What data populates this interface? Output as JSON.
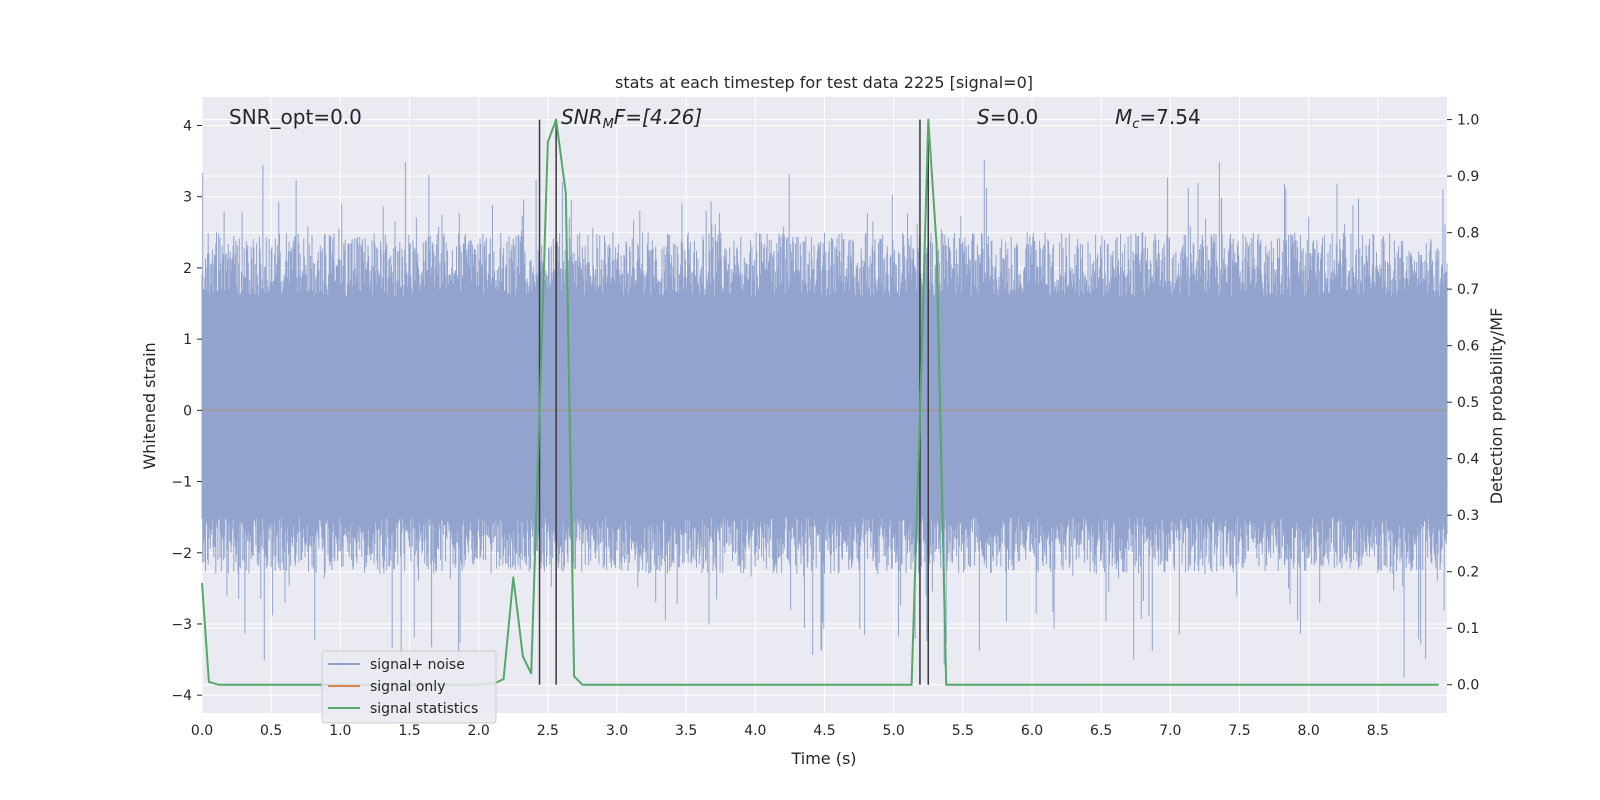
{
  "chart_data": {
    "type": "line",
    "title": "stats at each timestep for test data 2225 [signal=0]",
    "xlabel": "Time (s)",
    "ylabel_left": "Whitened strain",
    "ylabel_right": "Detection probability/MF",
    "xlim": [
      0.0,
      9.0
    ],
    "ylim_left": [
      -4.25,
      4.4
    ],
    "ylim_right": [
      -0.05,
      1.04
    ],
    "x_ticks": [
      "0.0",
      "0.5",
      "1.0",
      "1.5",
      "2.0",
      "2.5",
      "3.0",
      "3.5",
      "4.0",
      "4.5",
      "5.0",
      "5.5",
      "6.0",
      "6.5",
      "7.0",
      "7.5",
      "8.0",
      "8.5"
    ],
    "y_ticks_left": [
      "4",
      "3",
      "2",
      "1",
      "0",
      "−1",
      "−2",
      "−3",
      "−4"
    ],
    "y_ticks_right": [
      "1.0",
      "0.9",
      "0.8",
      "0.7",
      "0.6",
      "0.5",
      "0.4",
      "0.3",
      "0.2",
      "0.1",
      "0.0"
    ],
    "grid": true,
    "legend_position": "lower-left",
    "annotations": {
      "snr_opt": "SNR_opt=0.0",
      "snr_mf_main": "SNR",
      "snr_mf_sub": "M",
      "snr_mf_rest": "F=[4.26]",
      "s_var": "S",
      "s_rest": "=0.0",
      "mc_var": "M",
      "mc_sub": "c",
      "mc_rest": "=7.54"
    },
    "series": [
      {
        "name": "signal+ noise",
        "color": "#8da0cb",
        "axis": "left",
        "description_range": [
          -3.85,
          3.6
        ]
      },
      {
        "name": "signal only",
        "color": "#dd8452",
        "axis": "left",
        "x": [
          0.0,
          9.0
        ],
        "values": [
          0.0,
          0.0
        ]
      },
      {
        "name": "signal statistics",
        "color": "#55a868",
        "axis": "right",
        "x": [
          0.0,
          0.05,
          0.12,
          0.3,
          0.5,
          1.0,
          1.5,
          2.0,
          2.12,
          2.18,
          2.25,
          2.32,
          2.38,
          2.44,
          2.5,
          2.56,
          2.63,
          2.69,
          2.75,
          3.0,
          4.0,
          5.0,
          5.13,
          5.19,
          5.25,
          5.31,
          5.38,
          5.5,
          6.0,
          7.0,
          8.0,
          8.94
        ],
        "values": [
          0.18,
          0.005,
          0.0,
          0.0,
          0.0,
          0.0,
          0.0,
          0.0,
          0.003,
          0.01,
          0.19,
          0.05,
          0.02,
          0.48,
          0.96,
          1.0,
          0.87,
          0.015,
          0.0,
          0.0,
          0.0,
          0.0,
          0.0,
          0.48,
          1.0,
          0.78,
          0.0,
          0.0,
          0.0,
          0.0,
          0.0,
          0.0
        ]
      }
    ],
    "vertical_markers": [
      {
        "x": 2.44,
        "color": "#3a3a3a"
      },
      {
        "x": 2.56,
        "color": "#3a3a3a"
      },
      {
        "x": 5.19,
        "color": "#3a3a3a"
      },
      {
        "x": 5.25,
        "color": "#3a3a3a"
      }
    ],
    "colors": {
      "plot_background": "#eaeaf2",
      "grid": "#ffffff",
      "marker_line": "#3a3a3a"
    }
  }
}
